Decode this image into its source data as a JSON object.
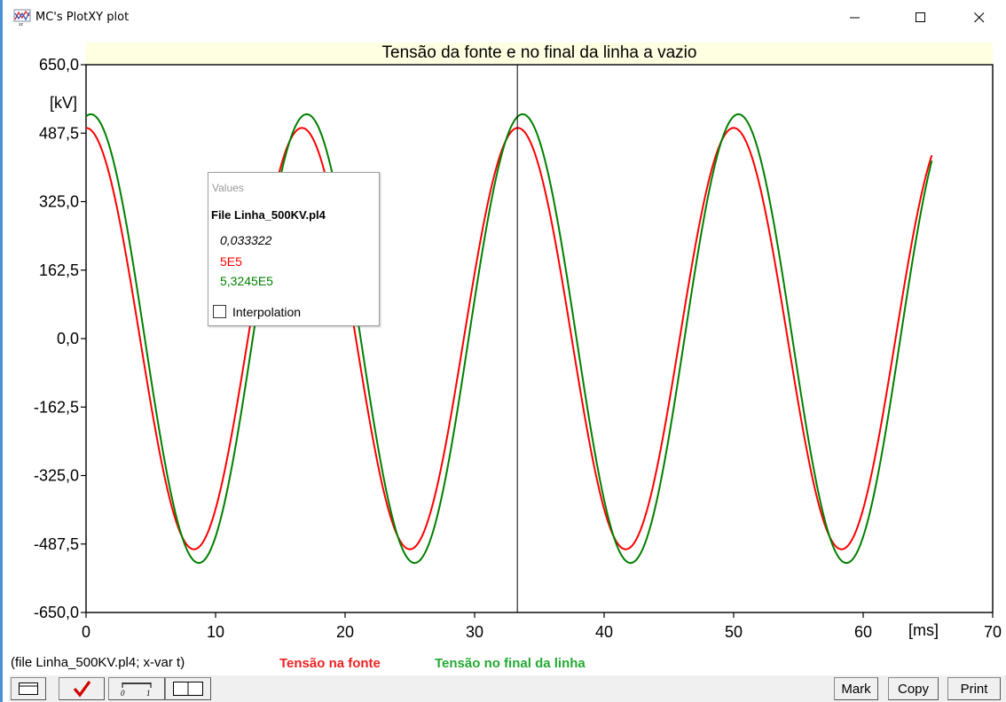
{
  "window": {
    "title": "MC's PlotXY plot",
    "app_icon": "plotxy-icon",
    "controls": {
      "minimize": "minimize-icon",
      "maximize": "maximize-icon",
      "close": "close-icon"
    }
  },
  "plot": {
    "title": "Tensão da fonte e no final da linha a vazio",
    "y_unit": "[kV]",
    "x_unit": "[ms]",
    "y_ticks": [
      "650,0",
      "487,5",
      "325,0",
      "162,5",
      "0,0",
      "-162,5",
      "-325,0",
      "-487,5",
      "-650,0"
    ],
    "x_ticks": [
      "0",
      "10",
      "20",
      "30",
      "40",
      "50",
      "60",
      "70"
    ],
    "cursor_x_ms": 33.3
  },
  "chart_data": {
    "type": "line",
    "title": "Tensão da fonte e no final da linha a vazio",
    "xlabel": "[ms]",
    "ylabel": "[kV]",
    "xlim": [
      0,
      70
    ],
    "ylim": [
      -650,
      650
    ],
    "grid": false,
    "legend_position": "bottom",
    "frequency_hz": 60,
    "t_end_ms": 65.3,
    "series": [
      {
        "name": "Tensão na fonte",
        "color": "#ff0000",
        "amplitude_kv": 500,
        "phase_deg": 0
      },
      {
        "name": "Tensão no final da linha",
        "color": "#008000",
        "amplitude_kv": 532.45,
        "phase_deg": -8
      }
    ]
  },
  "values_popup": {
    "caption": "Values",
    "file": "File Linha_500KV.pl4",
    "x_value": "0,033322",
    "y_values": [
      {
        "text": "5E5",
        "color": "#ff0000"
      },
      {
        "text": "5,3245E5",
        "color": "#008000"
      }
    ],
    "interpolation_label": "Interpolation",
    "interpolation_checked": false
  },
  "footer": {
    "file_info": "(file Linha_500KV.pl4; x-var t)",
    "legend": [
      {
        "label": "Tensão na fonte",
        "color": "#ee2222"
      },
      {
        "label": "Tensão no final da linha",
        "color": "#22aa33"
      }
    ]
  },
  "toolbar": {
    "icons": [
      "window-icon",
      "check-icon",
      "scale-icon",
      "split-view-icon"
    ],
    "mark_label": "Mark",
    "copy_label": "Copy",
    "print_label": "Print"
  }
}
